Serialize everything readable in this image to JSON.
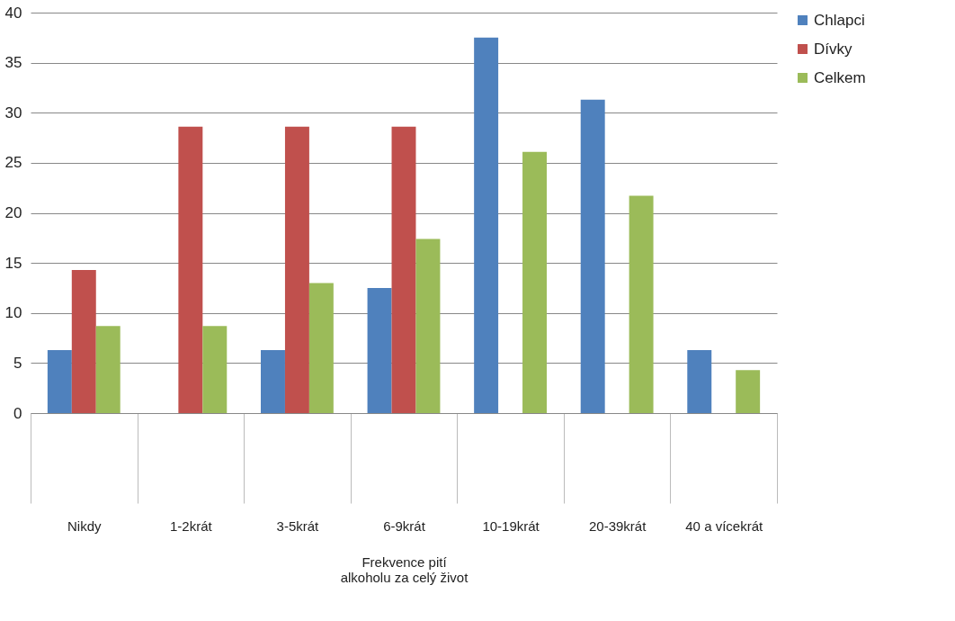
{
  "chart_data": {
    "type": "bar",
    "xlabel": "Frekvence pití\nalkoholu za celý život",
    "categories": [
      "Nikdy",
      "1-2krát",
      "3-5krát",
      "6-9krát",
      "10-19krát",
      "20-39krát",
      "40 a vícekrát"
    ],
    "series": [
      {
        "name": "Chlapci",
        "color": "#4f81bd",
        "values": [
          6.3,
          0,
          6.3,
          12.5,
          37.5,
          31.3,
          6.3
        ]
      },
      {
        "name": "Dívky",
        "color": "#c0504d",
        "values": [
          14.3,
          28.6,
          28.6,
          28.6,
          0,
          0,
          0
        ]
      },
      {
        "name": "Celkem",
        "color": "#9bbb59",
        "values": [
          8.7,
          8.7,
          13.0,
          17.4,
          26.1,
          21.7,
          4.3
        ]
      }
    ],
    "ylim": [
      0,
      40
    ],
    "yticks": [
      0,
      5,
      10,
      15,
      20,
      25,
      30,
      35,
      40
    ],
    "grid": "y",
    "legend": "right"
  }
}
